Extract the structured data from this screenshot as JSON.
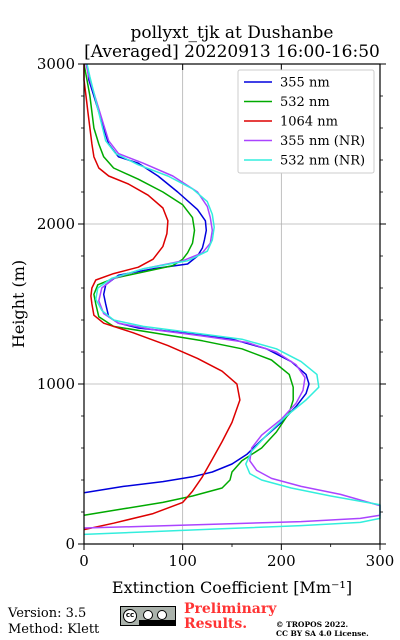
{
  "chart_data": {
    "type": "line",
    "title_line1": "pollyxt_tjk at Dushanbe",
    "title_line2": "[Averaged] 20220913 16:00-16:50",
    "xlabel": "Extinction Coefficient [Mm⁻¹]",
    "ylabel": "Height (m)",
    "xlim": [
      0,
      300
    ],
    "ylim": [
      0,
      3000
    ],
    "xticks": [
      "0",
      "100",
      "200",
      "300"
    ],
    "yticks": [
      "0",
      "1000",
      "2000",
      "3000"
    ],
    "xtick_values": [
      0,
      100,
      200,
      300
    ],
    "ytick_values": [
      0,
      1000,
      2000,
      3000
    ],
    "grid": true,
    "legend_position": "top-right",
    "series": [
      {
        "name": "355 nm",
        "color": "#0000dd",
        "points": [
          [
            0,
            320
          ],
          [
            40,
            360
          ],
          [
            80,
            390
          ],
          [
            110,
            420
          ],
          [
            130,
            450
          ],
          [
            150,
            500
          ],
          [
            165,
            560
          ],
          [
            180,
            650
          ],
          [
            200,
            760
          ],
          [
            215,
            860
          ],
          [
            225,
            940
          ],
          [
            228,
            1000
          ],
          [
            225,
            1060
          ],
          [
            210,
            1140
          ],
          [
            185,
            1220
          ],
          [
            150,
            1280
          ],
          [
            100,
            1320
          ],
          [
            55,
            1350
          ],
          [
            35,
            1380
          ],
          [
            25,
            1420
          ],
          [
            22,
            1500
          ],
          [
            20,
            1560
          ],
          [
            22,
            1620
          ],
          [
            35,
            1680
          ],
          [
            70,
            1720
          ],
          [
            105,
            1750
          ],
          [
            115,
            1800
          ],
          [
            120,
            1850
          ],
          [
            122,
            1900
          ],
          [
            124,
            1960
          ],
          [
            123,
            2020
          ],
          [
            115,
            2090
          ],
          [
            95,
            2200
          ],
          [
            75,
            2300
          ],
          [
            55,
            2380
          ],
          [
            35,
            2420
          ],
          [
            25,
            2500
          ],
          [
            20,
            2600
          ],
          [
            15,
            2700
          ],
          [
            10,
            2800
          ],
          [
            5,
            2900
          ],
          [
            3,
            3000
          ]
        ]
      },
      {
        "name": "532 nm",
        "color": "#00aa00",
        "points": [
          [
            0,
            180
          ],
          [
            40,
            220
          ],
          [
            80,
            260
          ],
          [
            110,
            300
          ],
          [
            140,
            350
          ],
          [
            148,
            400
          ],
          [
            150,
            450
          ],
          [
            160,
            520
          ],
          [
            180,
            600
          ],
          [
            195,
            700
          ],
          [
            208,
            820
          ],
          [
            212,
            900
          ],
          [
            212,
            980
          ],
          [
            208,
            1060
          ],
          [
            190,
            1150
          ],
          [
            160,
            1220
          ],
          [
            120,
            1270
          ],
          [
            70,
            1320
          ],
          [
            30,
            1360
          ],
          [
            15,
            1420
          ],
          [
            12,
            1500
          ],
          [
            10,
            1560
          ],
          [
            14,
            1620
          ],
          [
            30,
            1660
          ],
          [
            60,
            1700
          ],
          [
            90,
            1740
          ],
          [
            100,
            1780
          ],
          [
            105,
            1820
          ],
          [
            110,
            1880
          ],
          [
            112,
            1960
          ],
          [
            110,
            2040
          ],
          [
            100,
            2120
          ],
          [
            80,
            2200
          ],
          [
            55,
            2280
          ],
          [
            30,
            2350
          ],
          [
            20,
            2420
          ],
          [
            15,
            2500
          ],
          [
            10,
            2600
          ],
          [
            8,
            2700
          ],
          [
            6,
            2800
          ],
          [
            3,
            2900
          ],
          [
            0,
            3000
          ]
        ]
      },
      {
        "name": "1064 nm",
        "color": "#dd0000",
        "points": [
          [
            0,
            90
          ],
          [
            30,
            130
          ],
          [
            70,
            190
          ],
          [
            100,
            260
          ],
          [
            110,
            330
          ],
          [
            120,
            420
          ],
          [
            130,
            530
          ],
          [
            140,
            640
          ],
          [
            150,
            760
          ],
          [
            158,
            900
          ],
          [
            155,
            1000
          ],
          [
            140,
            1080
          ],
          [
            115,
            1160
          ],
          [
            85,
            1240
          ],
          [
            50,
            1320
          ],
          [
            20,
            1380
          ],
          [
            10,
            1430
          ],
          [
            8,
            1500
          ],
          [
            7,
            1550
          ],
          [
            8,
            1600
          ],
          [
            12,
            1650
          ],
          [
            30,
            1690
          ],
          [
            55,
            1730
          ],
          [
            70,
            1780
          ],
          [
            80,
            1860
          ],
          [
            84,
            1940
          ],
          [
            85,
            2020
          ],
          [
            80,
            2100
          ],
          [
            65,
            2180
          ],
          [
            45,
            2250
          ],
          [
            25,
            2300
          ],
          [
            15,
            2350
          ],
          [
            10,
            2420
          ],
          [
            8,
            2500
          ],
          [
            6,
            2600
          ],
          [
            4,
            2700
          ],
          [
            2,
            2800
          ],
          [
            0,
            2900
          ],
          [
            0,
            3000
          ]
        ]
      },
      {
        "name": "355 nm (NR)",
        "color": "#aa44ff",
        "points": [
          [
            0,
            100
          ],
          [
            60,
            110
          ],
          [
            140,
            125
          ],
          [
            220,
            140
          ],
          [
            280,
            160
          ],
          [
            300,
            180
          ],
          [
            300,
            240
          ],
          [
            260,
            310
          ],
          [
            220,
            360
          ],
          [
            190,
            410
          ],
          [
            175,
            460
          ],
          [
            168,
            520
          ],
          [
            170,
            600
          ],
          [
            180,
            680
          ],
          [
            200,
            780
          ],
          [
            215,
            880
          ],
          [
            222,
            960
          ],
          [
            224,
            1040
          ],
          [
            215,
            1120
          ],
          [
            195,
            1200
          ],
          [
            165,
            1260
          ],
          [
            120,
            1300
          ],
          [
            70,
            1340
          ],
          [
            35,
            1380
          ],
          [
            20,
            1440
          ],
          [
            15,
            1520
          ],
          [
            18,
            1600
          ],
          [
            30,
            1660
          ],
          [
            60,
            1720
          ],
          [
            100,
            1770
          ],
          [
            120,
            1820
          ],
          [
            128,
            1880
          ],
          [
            130,
            1960
          ],
          [
            128,
            2040
          ],
          [
            125,
            2110
          ],
          [
            115,
            2200
          ],
          [
            90,
            2300
          ],
          [
            60,
            2380
          ],
          [
            35,
            2440
          ],
          [
            25,
            2520
          ],
          [
            20,
            2620
          ],
          [
            15,
            2720
          ],
          [
            10,
            2820
          ],
          [
            5,
            2920
          ],
          [
            2,
            3000
          ]
        ]
      },
      {
        "name": "532 nm (NR)",
        "color": "#33eedd",
        "points": [
          [
            0,
            60
          ],
          [
            60,
            75
          ],
          [
            140,
            95
          ],
          [
            220,
            115
          ],
          [
            280,
            135
          ],
          [
            300,
            160
          ],
          [
            300,
            245
          ],
          [
            250,
            300
          ],
          [
            210,
            350
          ],
          [
            180,
            400
          ],
          [
            168,
            440
          ],
          [
            164,
            500
          ],
          [
            170,
            580
          ],
          [
            185,
            680
          ],
          [
            205,
            800
          ],
          [
            225,
            900
          ],
          [
            238,
            980
          ],
          [
            236,
            1060
          ],
          [
            220,
            1140
          ],
          [
            195,
            1220
          ],
          [
            160,
            1280
          ],
          [
            110,
            1320
          ],
          [
            60,
            1360
          ],
          [
            30,
            1400
          ],
          [
            18,
            1460
          ],
          [
            12,
            1530
          ],
          [
            14,
            1600
          ],
          [
            28,
            1660
          ],
          [
            60,
            1720
          ],
          [
            105,
            1770
          ],
          [
            125,
            1830
          ],
          [
            130,
            1900
          ],
          [
            132,
            1980
          ],
          [
            130,
            2060
          ],
          [
            125,
            2140
          ],
          [
            110,
            2220
          ],
          [
            85,
            2300
          ],
          [
            55,
            2370
          ],
          [
            32,
            2440
          ],
          [
            22,
            2520
          ],
          [
            18,
            2620
          ],
          [
            14,
            2720
          ],
          [
            10,
            2820
          ],
          [
            6,
            2920
          ],
          [
            3,
            3000
          ]
        ]
      }
    ]
  },
  "footer": {
    "version": "Version: 3.5",
    "method": "Method: Klett",
    "preliminary_line1": "Preliminary",
    "preliminary_line2": "Results.",
    "copyright_line1": "© TROPOS 2022.",
    "copyright_line2": "CC BY SA 4.0 License."
  }
}
